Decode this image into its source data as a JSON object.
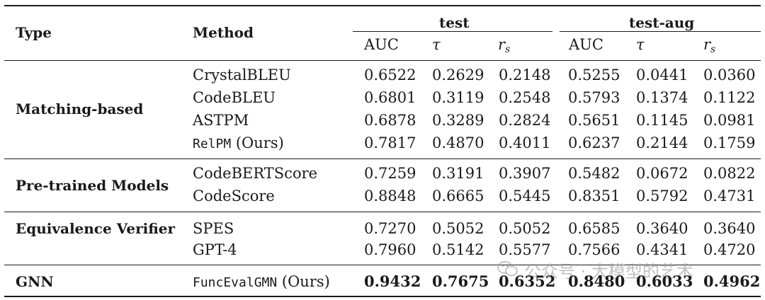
{
  "header": {
    "type_label": "Type",
    "method_label": "Method",
    "group_test": "test",
    "group_test_aug": "test-aug",
    "sub_auc": "AUC",
    "sub_tau": "τ",
    "sub_rs_base": "r",
    "sub_rs_sub": "s"
  },
  "groups": [
    {
      "type": "Matching-based",
      "rows": [
        {
          "method": "CrystalBLEU",
          "values": [
            "0.6522",
            "0.2629",
            "0.2148",
            "0.5255",
            "0.0441",
            "0.0360"
          ]
        },
        {
          "method": "CodeBLEU",
          "values": [
            "0.6801",
            "0.3119",
            "0.2548",
            "0.5793",
            "0.1374",
            "0.1122"
          ]
        },
        {
          "method": "ASTPM",
          "values": [
            "0.6878",
            "0.3289",
            "0.2824",
            "0.5651",
            "0.1145",
            "0.0981"
          ]
        },
        {
          "method_code": "RelPM",
          "method_suffix": " (Ours)",
          "values": [
            "0.7817",
            "0.4870",
            "0.4011",
            "0.6237",
            "0.2144",
            "0.1759"
          ]
        }
      ]
    },
    {
      "type": "Pre-trained Models",
      "rows": [
        {
          "method": "CodeBERTScore",
          "values": [
            "0.7259",
            "0.3191",
            "0.3907",
            "0.5482",
            "0.0672",
            "0.0822"
          ]
        },
        {
          "method": "CodeScore",
          "values": [
            "0.8848",
            "0.6665",
            "0.5445",
            "0.8351",
            "0.5792",
            "0.4731"
          ]
        }
      ]
    },
    {
      "type": "Equivalence Verifier",
      "rows": [
        {
          "method": "SPES",
          "values": [
            "0.7270",
            "0.5052",
            "0.5052",
            "0.6585",
            "0.3640",
            "0.3640"
          ]
        },
        {
          "method": "GPT-4",
          "values": [
            "0.7960",
            "0.5142",
            "0.5577",
            "0.7566",
            "0.4341",
            "0.4720"
          ]
        }
      ]
    },
    {
      "type": "GNN",
      "rows": [
        {
          "method_code": "FuncEvalGMN",
          "method_suffix": " (Ours)",
          "values": [
            "0.9432",
            "0.7675",
            "0.6352",
            "0.8480",
            "0.6033",
            "0.4962"
          ],
          "bold": true
        }
      ]
    }
  ],
  "watermark": "公众号 · 大模型的艺术"
}
